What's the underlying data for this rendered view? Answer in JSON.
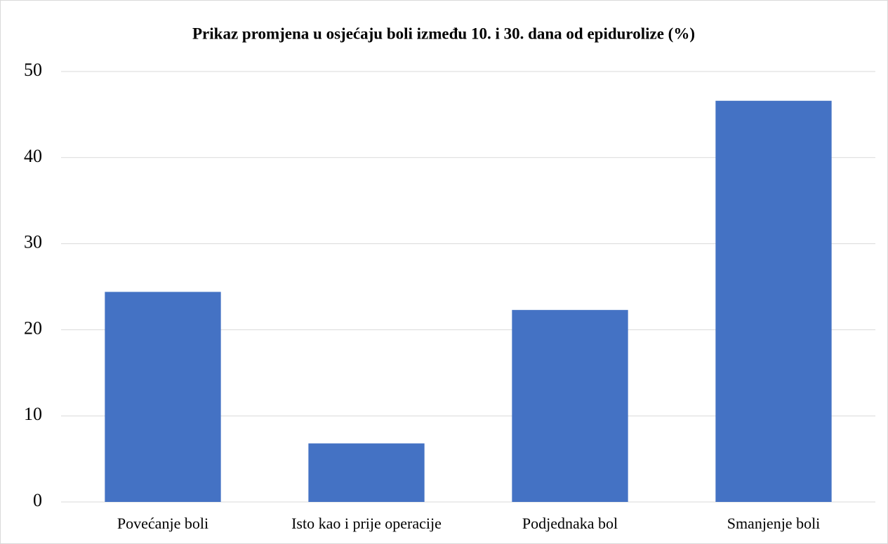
{
  "chart_data": {
    "type": "bar",
    "title": "Prikaz promjena u osjećaju boli između 10. i 30. dana od epidurolize (%)",
    "categories": [
      "Povećanje boli",
      "Isto kao i prije operacije",
      "Podjednaka bol",
      "Smanjenje boli"
    ],
    "values": [
      24.4,
      6.8,
      22.3,
      46.6
    ],
    "color": "#4472c4",
    "ylim": [
      0,
      50
    ],
    "yticks": [
      0,
      10,
      20,
      30,
      40,
      50
    ],
    "grid": true
  }
}
